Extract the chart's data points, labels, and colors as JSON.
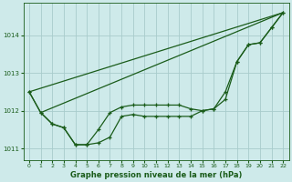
{
  "xlabel": "Graphe pression niveau de la mer (hPa)",
  "bg_color": "#ceeaea",
  "grid_color": "#a8cccc",
  "line_color": "#1a5c1a",
  "hours": [
    0,
    1,
    2,
    3,
    4,
    5,
    6,
    7,
    8,
    9,
    10,
    11,
    12,
    13,
    14,
    15,
    16,
    17,
    18,
    19,
    20,
    21,
    22
  ],
  "pressure_curve": [
    1012.5,
    1011.95,
    1011.65,
    1011.55,
    1011.1,
    1011.1,
    1011.15,
    1011.3,
    1011.85,
    1011.9,
    1011.85,
    1011.85,
    1011.85,
    1011.85,
    1011.85,
    1012.0,
    1012.05,
    1012.3,
    1013.3,
    1013.75,
    1013.8,
    1014.2,
    1014.6
  ],
  "pressure_line2": [
    1012.5,
    1011.95,
    1011.65,
    1011.55,
    1011.1,
    1011.1,
    1011.5,
    1011.95,
    1012.1,
    1012.15,
    1012.15,
    1012.15,
    1012.15,
    1012.15,
    1012.05,
    1012.0,
    1012.05,
    1012.5,
    1013.3,
    1013.75,
    1013.8,
    1014.2,
    1014.6
  ],
  "straight_line1": [
    1012.5,
    1014.6
  ],
  "straight_line1_x": [
    0,
    22
  ],
  "straight_line2": [
    1011.95,
    1014.6
  ],
  "straight_line2_x": [
    1,
    22
  ],
  "ylim": [
    1010.7,
    1014.85
  ],
  "yticks": [
    1011,
    1012,
    1013,
    1014
  ],
  "xticks": [
    0,
    1,
    2,
    3,
    4,
    5,
    6,
    7,
    8,
    9,
    10,
    11,
    12,
    13,
    14,
    15,
    16,
    17,
    18,
    19,
    20,
    21,
    22
  ]
}
